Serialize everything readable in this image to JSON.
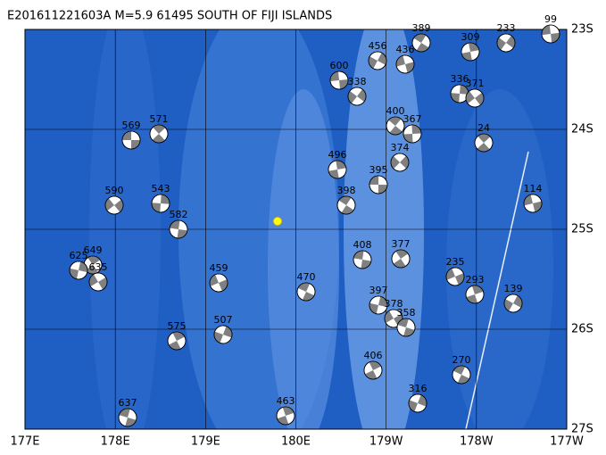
{
  "header": {
    "title": "E201611221603A M=5.9 61495 SOUTH OF FIJI ISLANDS"
  },
  "axes": {
    "longitudes": [
      "177E",
      "178E",
      "179E",
      "180E",
      "179W",
      "178W",
      "177W"
    ],
    "latitudes": [
      "23S",
      "24S",
      "25S",
      "26S",
      "27S"
    ]
  },
  "events": [
    {
      "label": "569"
    },
    {
      "label": "571"
    },
    {
      "label": "543"
    },
    {
      "label": "590"
    },
    {
      "label": "582"
    },
    {
      "label": "649"
    },
    {
      "label": "625"
    },
    {
      "label": "635"
    },
    {
      "label": "637"
    },
    {
      "label": "575"
    },
    {
      "label": "507"
    },
    {
      "label": "459"
    },
    {
      "label": "470"
    },
    {
      "label": "463"
    },
    {
      "label": "456"
    },
    {
      "label": "436"
    },
    {
      "label": "389"
    },
    {
      "label": "309"
    },
    {
      "label": "233"
    },
    {
      "label": "99"
    },
    {
      "label": "400"
    },
    {
      "label": "367"
    },
    {
      "label": "374"
    },
    {
      "label": "395"
    },
    {
      "label": "24"
    },
    {
      "label": "336"
    },
    {
      "label": "371"
    },
    {
      "label": "408"
    },
    {
      "label": "377"
    },
    {
      "label": "397"
    },
    {
      "label": "378"
    },
    {
      "label": "358"
    },
    {
      "label": "406"
    },
    {
      "label": "316"
    },
    {
      "label": "235"
    },
    {
      "label": "270"
    },
    {
      "label": "293"
    },
    {
      "label": "139"
    },
    {
      "label": "114"
    },
    {
      "label": "398"
    },
    {
      "label": "496"
    },
    {
      "label": "338"
    },
    {
      "label": "600"
    }
  ]
}
